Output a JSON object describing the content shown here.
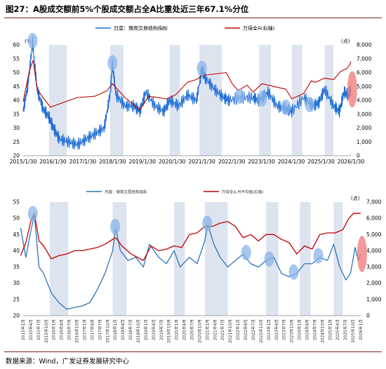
{
  "header": {
    "figure_label": "图27：",
    "title": "A股成交额前5%个股成交额占全A比重处近三年67.1%分位"
  },
  "footer": {
    "source": "数据来源：Wind，广发证券发展研究中心"
  },
  "chart_data": [
    {
      "type": "line",
      "frequency": "daily",
      "x_start": "2015/1/30",
      "x_end": "2026/1/30",
      "x_ticks": [
        "2015/1/30",
        "2016/1/30",
        "2017/1/30",
        "2018/1/30",
        "2019/1/30",
        "2020/1/30",
        "2021/1/30",
        "2022/1/30",
        "2023/1/30",
        "2024/1/30",
        "2025/1/30",
        "2026/1/30"
      ],
      "left_unit": "(%)",
      "right_unit": "(点)",
      "ylim_left": [
        20,
        60
      ],
      "yticks_left": [
        "20",
        "25",
        "30",
        "35",
        "40",
        "45",
        "50",
        "55",
        "60"
      ],
      "ylim_right": [
        0,
        8000
      ],
      "yticks_right": [
        "0",
        "1,000",
        "2,000",
        "3,000",
        "4,000",
        "5,000",
        "6,000",
        "7,000",
        "8,000"
      ],
      "colors": {
        "left_series": "#1f6fd6",
        "right_series": "#c00000",
        "band": "#dde4f0",
        "bubble": "#8ab4e8",
        "bubble_latest": "#f08080"
      },
      "series": [
        {
          "name": "日度：微观交易结构指标",
          "axis": "left",
          "points": [
            [
              2015.08,
              36
            ],
            [
              2015.25,
              46
            ],
            [
              2015.4,
              61
            ],
            [
              2015.55,
              44
            ],
            [
              2015.75,
              37
            ],
            [
              2015.95,
              34
            ],
            [
              2016.1,
              30
            ],
            [
              2016.3,
              26
            ],
            [
              2016.6,
              25
            ],
            [
              2016.9,
              24
            ],
            [
              2017.2,
              26
            ],
            [
              2017.5,
              28
            ],
            [
              2017.8,
              30
            ],
            [
              2018.0,
              42
            ],
            [
              2018.08,
              53
            ],
            [
              2018.2,
              42
            ],
            [
              2018.5,
              38
            ],
            [
              2018.8,
              38
            ],
            [
              2019.0,
              36
            ],
            [
              2019.2,
              43
            ],
            [
              2019.5,
              38
            ],
            [
              2019.8,
              36
            ],
            [
              2020.0,
              40
            ],
            [
              2020.3,
              38
            ],
            [
              2020.6,
              42
            ],
            [
              2020.9,
              40
            ],
            [
              2021.08,
              51
            ],
            [
              2021.2,
              48
            ],
            [
              2021.5,
              44
            ],
            [
              2021.8,
              41
            ],
            [
              2022.0,
              40
            ],
            [
              2022.4,
              41
            ],
            [
              2022.8,
              41
            ],
            [
              2023.0,
              40
            ],
            [
              2023.3,
              43
            ],
            [
              2023.6,
              38
            ],
            [
              2023.9,
              37
            ],
            [
              2024.1,
              36
            ],
            [
              2024.5,
              41
            ],
            [
              2024.8,
              38
            ],
            [
              2025.0,
              39
            ],
            [
              2025.2,
              44
            ],
            [
              2025.5,
              38
            ],
            [
              2025.7,
              36
            ],
            [
              2025.85,
              43
            ],
            [
              2026.0,
              42
            ],
            [
              2026.08,
              44
            ]
          ]
        },
        {
          "name": "万得全A(右轴)",
          "axis": "right",
          "points": [
            [
              2015.08,
              3900
            ],
            [
              2015.3,
              6200
            ],
            [
              2015.42,
              6900
            ],
            [
              2015.55,
              4800
            ],
            [
              2015.75,
              4200
            ],
            [
              2016.0,
              3500
            ],
            [
              2016.5,
              3900
            ],
            [
              2016.9,
              4200
            ],
            [
              2017.5,
              4300
            ],
            [
              2017.9,
              4700
            ],
            [
              2018.08,
              5200
            ],
            [
              2018.5,
              4200
            ],
            [
              2018.9,
              3500
            ],
            [
              2019.0,
              3300
            ],
            [
              2019.3,
              4300
            ],
            [
              2019.9,
              4100
            ],
            [
              2020.2,
              4400
            ],
            [
              2020.6,
              5300
            ],
            [
              2020.9,
              5500
            ],
            [
              2021.1,
              5800
            ],
            [
              2021.5,
              5900
            ],
            [
              2021.9,
              6000
            ],
            [
              2022.1,
              5200
            ],
            [
              2022.3,
              4700
            ],
            [
              2022.6,
              5100
            ],
            [
              2022.8,
              4600
            ],
            [
              2023.1,
              5200
            ],
            [
              2023.5,
              5000
            ],
            [
              2023.9,
              4800
            ],
            [
              2024.1,
              4100
            ],
            [
              2024.5,
              4500
            ],
            [
              2024.75,
              5400
            ],
            [
              2024.9,
              5300
            ],
            [
              2025.2,
              5600
            ],
            [
              2025.5,
              5500
            ],
            [
              2025.75,
              6100
            ],
            [
              2025.95,
              6300
            ],
            [
              2026.05,
              6600
            ],
            [
              2026.08,
              6800
            ]
          ]
        }
      ]
    },
    {
      "type": "line",
      "frequency": "monthly",
      "x_ticks": [
        "2015年1月",
        "2015年4月",
        "2015年7月",
        "2015年10月",
        "2016年1月",
        "2016年4月",
        "2016年7月",
        "2016年10月",
        "2017年1月",
        "2017年4月",
        "2017年7月",
        "2017年10月",
        "2018年1月",
        "2018年4月",
        "2018年7月",
        "2018年10月",
        "2019年1月",
        "2019年4月",
        "2019年7月",
        "2019年10月",
        "2020年1月",
        "2020年4月",
        "2020年7月",
        "2020年10月",
        "2021年1月",
        "2021年4月",
        "2021年7月",
        "2021年10月",
        "2022年1月",
        "2022年4月",
        "2022年7月",
        "2022年10月",
        "2023年1月",
        "2023年4月",
        "2023年7月",
        "2023年10月",
        "2024年1月",
        "2024年4月",
        "2024年7月",
        "2024年10月",
        "2025年1月",
        "2025年4月",
        "2025年7月",
        "2025年10月",
        "2026年1月"
      ],
      "right_unit": "(点)",
      "ylim_left": [
        20,
        55
      ],
      "yticks_left": [
        "20",
        "25",
        "30",
        "35",
        "40",
        "45",
        "50",
        "55"
      ],
      "ylim_right": [
        0,
        7000
      ],
      "yticks_right": [
        "0",
        "1,000",
        "2,000",
        "3,000",
        "4,000",
        "5,000",
        "6,000",
        "7,000"
      ],
      "colors": {
        "left_series": "#2e75b6",
        "right_series": "#c00000",
        "band": "#dde4f0",
        "bubble": "#8ab4e8",
        "bubble_latest": "#f08080"
      },
      "series": [
        {
          "name": "月度：微观交易结构指标",
          "axis": "left",
          "points": [
            [
              2015.0,
              47
            ],
            [
              2015.17,
              38
            ],
            [
              2015.33,
              46
            ],
            [
              2015.45,
              51
            ],
            [
              2015.6,
              35
            ],
            [
              2015.75,
              33
            ],
            [
              2016.0,
              27
            ],
            [
              2016.25,
              24
            ],
            [
              2016.5,
              22
            ],
            [
              2016.75,
              22.5
            ],
            [
              2017.0,
              23
            ],
            [
              2017.25,
              24
            ],
            [
              2017.5,
              28
            ],
            [
              2017.75,
              33
            ],
            [
              2018.0,
              40
            ],
            [
              2018.1,
              47
            ],
            [
              2018.25,
              40
            ],
            [
              2018.5,
              37
            ],
            [
              2018.75,
              38
            ],
            [
              2019.0,
              35
            ],
            [
              2019.2,
              42
            ],
            [
              2019.5,
              38
            ],
            [
              2019.75,
              36
            ],
            [
              2020.0,
              40
            ],
            [
              2020.2,
              35
            ],
            [
              2020.5,
              38
            ],
            [
              2020.75,
              36
            ],
            [
              2021.0,
              43
            ],
            [
              2021.1,
              48
            ],
            [
              2021.3,
              42
            ],
            [
              2021.5,
              38
            ],
            [
              2021.75,
              35
            ],
            [
              2022.0,
              37
            ],
            [
              2022.25,
              39
            ],
            [
              2022.5,
              36
            ],
            [
              2022.75,
              35
            ],
            [
              2023.0,
              37
            ],
            [
              2023.25,
              38
            ],
            [
              2023.5,
              33
            ],
            [
              2023.75,
              32
            ],
            [
              2024.0,
              33
            ],
            [
              2024.25,
              36
            ],
            [
              2024.5,
              36
            ],
            [
              2024.75,
              38
            ],
            [
              2025.0,
              37
            ],
            [
              2025.2,
              42
            ],
            [
              2025.4,
              35
            ],
            [
              2025.6,
              31
            ],
            [
              2025.75,
              33
            ],
            [
              2025.9,
              41
            ],
            [
              2026.0,
              37
            ],
            [
              2026.08,
              39
            ]
          ]
        },
        {
          "name": "万得全A:月平均值(右轴)",
          "axis": "right",
          "points": [
            [
              2015.0,
              3700
            ],
            [
              2015.17,
              4500
            ],
            [
              2015.33,
              5800
            ],
            [
              2015.45,
              6300
            ],
            [
              2015.6,
              4600
            ],
            [
              2015.75,
              4300
            ],
            [
              2016.0,
              3500
            ],
            [
              2016.25,
              3700
            ],
            [
              2016.5,
              3800
            ],
            [
              2016.75,
              4000
            ],
            [
              2017.0,
              4000
            ],
            [
              2017.25,
              4100
            ],
            [
              2017.5,
              4200
            ],
            [
              2017.75,
              4400
            ],
            [
              2018.0,
              4700
            ],
            [
              2018.1,
              4800
            ],
            [
              2018.3,
              4300
            ],
            [
              2018.6,
              3800
            ],
            [
              2018.9,
              3500
            ],
            [
              2019.0,
              3400
            ],
            [
              2019.25,
              4300
            ],
            [
              2019.5,
              4000
            ],
            [
              2019.75,
              4100
            ],
            [
              2020.0,
              4300
            ],
            [
              2020.25,
              4200
            ],
            [
              2020.5,
              5000
            ],
            [
              2020.75,
              5100
            ],
            [
              2021.0,
              5500
            ],
            [
              2021.25,
              5500
            ],
            [
              2021.5,
              5700
            ],
            [
              2021.75,
              5800
            ],
            [
              2022.0,
              5500
            ],
            [
              2022.25,
              4800
            ],
            [
              2022.5,
              5000
            ],
            [
              2022.75,
              4600
            ],
            [
              2023.0,
              5000
            ],
            [
              2023.25,
              5000
            ],
            [
              2023.5,
              4700
            ],
            [
              2023.75,
              4500
            ],
            [
              2024.0,
              3800
            ],
            [
              2024.25,
              4300
            ],
            [
              2024.5,
              4100
            ],
            [
              2024.75,
              5000
            ],
            [
              2025.0,
              5100
            ],
            [
              2025.25,
              5100
            ],
            [
              2025.5,
              5300
            ],
            [
              2025.7,
              6000
            ],
            [
              2025.85,
              6300
            ],
            [
              2026.0,
              6300
            ],
            [
              2026.08,
              6300
            ]
          ]
        }
      ]
    }
  ]
}
